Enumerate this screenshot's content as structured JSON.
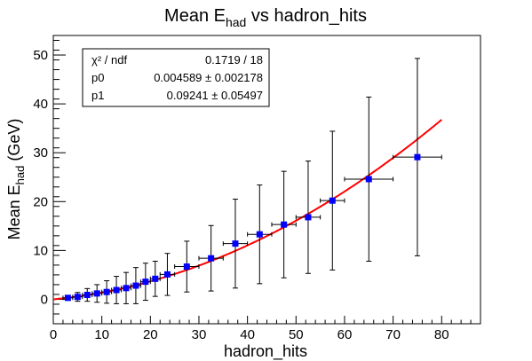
{
  "chart_data": {
    "type": "scatter",
    "title_main": "Mean E",
    "title_sub": "had",
    "title_rest": " vs hadron_hits",
    "xlabel": "hadron_hits",
    "ylabel_main": "Mean E",
    "ylabel_sub": "had",
    "ylabel_rest": " (GeV)",
    "xlim": [
      0,
      88
    ],
    "ylim": [
      -5,
      54
    ],
    "x_ticks": [
      0,
      10,
      20,
      30,
      40,
      50,
      60,
      70,
      80
    ],
    "y_ticks": [
      0,
      10,
      20,
      30,
      40,
      50
    ],
    "stats": {
      "rows": [
        {
          "label": "χ² / ndf",
          "value": "0.1719 / 18"
        },
        {
          "label": "p0",
          "value": "0.004589 ± 0.002178"
        },
        {
          "label": "p1",
          "value": "0.09241 ± 0.05497"
        }
      ]
    },
    "fit": {
      "p0": 0.004589,
      "p1": 0.09241,
      "x_range": [
        0,
        80
      ],
      "color": "#ff0000"
    },
    "marker_color": "#0000ff",
    "points": [
      {
        "x": 3,
        "y": 0.3,
        "xerr": 1,
        "yerr": 0.5
      },
      {
        "x": 5,
        "y": 0.5,
        "xerr": 1,
        "yerr": 0.9
      },
      {
        "x": 7,
        "y": 0.9,
        "xerr": 1,
        "yerr": 1.3
      },
      {
        "x": 9,
        "y": 1.2,
        "xerr": 1,
        "yerr": 1.8
      },
      {
        "x": 11,
        "y": 1.5,
        "xerr": 1,
        "yerr": 2.3
      },
      {
        "x": 13,
        "y": 1.9,
        "xerr": 1,
        "yerr": 2.8
      },
      {
        "x": 15,
        "y": 2.3,
        "xerr": 1,
        "yerr": 3.2
      },
      {
        "x": 17,
        "y": 2.8,
        "xerr": 1,
        "yerr": 3.7
      },
      {
        "x": 19,
        "y": 3.6,
        "xerr": 1,
        "yerr": 3.8
      },
      {
        "x": 21,
        "y": 4.2,
        "xerr": 1,
        "yerr": 3.6
      },
      {
        "x": 23.5,
        "y": 5.1,
        "xerr": 1.5,
        "yerr": 4.3
      },
      {
        "x": 27.5,
        "y": 6.7,
        "xerr": 2.5,
        "yerr": 5.2
      },
      {
        "x": 32.5,
        "y": 8.4,
        "xerr": 2.5,
        "yerr": 6.7
      },
      {
        "x": 37.5,
        "y": 11.4,
        "xerr": 2.5,
        "yerr": 9.1
      },
      {
        "x": 42.5,
        "y": 13.3,
        "xerr": 2.5,
        "yerr": 10.1
      },
      {
        "x": 47.5,
        "y": 15.3,
        "xerr": 2.5,
        "yerr": 10.9
      },
      {
        "x": 52.5,
        "y": 16.8,
        "xerr": 2.5,
        "yerr": 11.5
      },
      {
        "x": 57.5,
        "y": 20.2,
        "xerr": 2.5,
        "yerr": 14.2
      },
      {
        "x": 65,
        "y": 24.6,
        "xerr": 5,
        "yerr": 16.8
      },
      {
        "x": 75,
        "y": 29.1,
        "xerr": 5,
        "yerr": 20.2
      }
    ]
  }
}
